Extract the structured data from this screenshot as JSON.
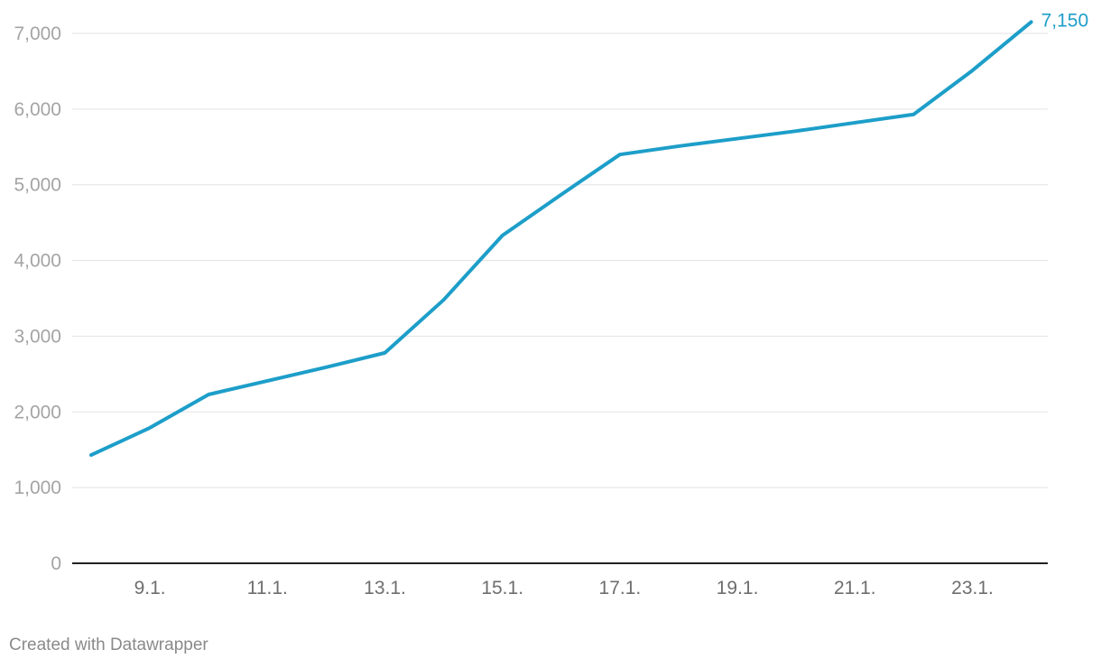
{
  "chart_data": {
    "type": "line",
    "x": [
      "8.1.",
      "9.1.",
      "10.1.",
      "11.1.",
      "12.1.",
      "13.1.",
      "14.1.",
      "15.1.",
      "16.1.",
      "17.1.",
      "18.1.",
      "19.1.",
      "20.1.",
      "21.1.",
      "22.1.",
      "23.1.",
      "24.1."
    ],
    "xticks": [
      "9.1.",
      "11.1.",
      "13.1.",
      "15.1.",
      "17.1.",
      "19.1.",
      "21.1.",
      "23.1."
    ],
    "series": [
      {
        "values": [
          1430,
          1790,
          2230,
          2410,
          2590,
          2780,
          3480,
          4330,
          4870,
          5400,
          5510,
          5610,
          5710,
          5820,
          5930,
          6510,
          7150
        ],
        "color": "#1d9ec9"
      }
    ],
    "end_label": "7,150",
    "ylim": [
      0,
      7000
    ],
    "yticks": [
      0,
      1000,
      2000,
      3000,
      4000,
      5000,
      6000,
      7000
    ],
    "ytick_labels": [
      "0",
      "1,000",
      "2,000",
      "3,000",
      "4,000",
      "5,000",
      "6,000",
      "7,000"
    ],
    "grid": true,
    "xlabel": "",
    "ylabel": ""
  },
  "credit": "Created with Datawrapper"
}
